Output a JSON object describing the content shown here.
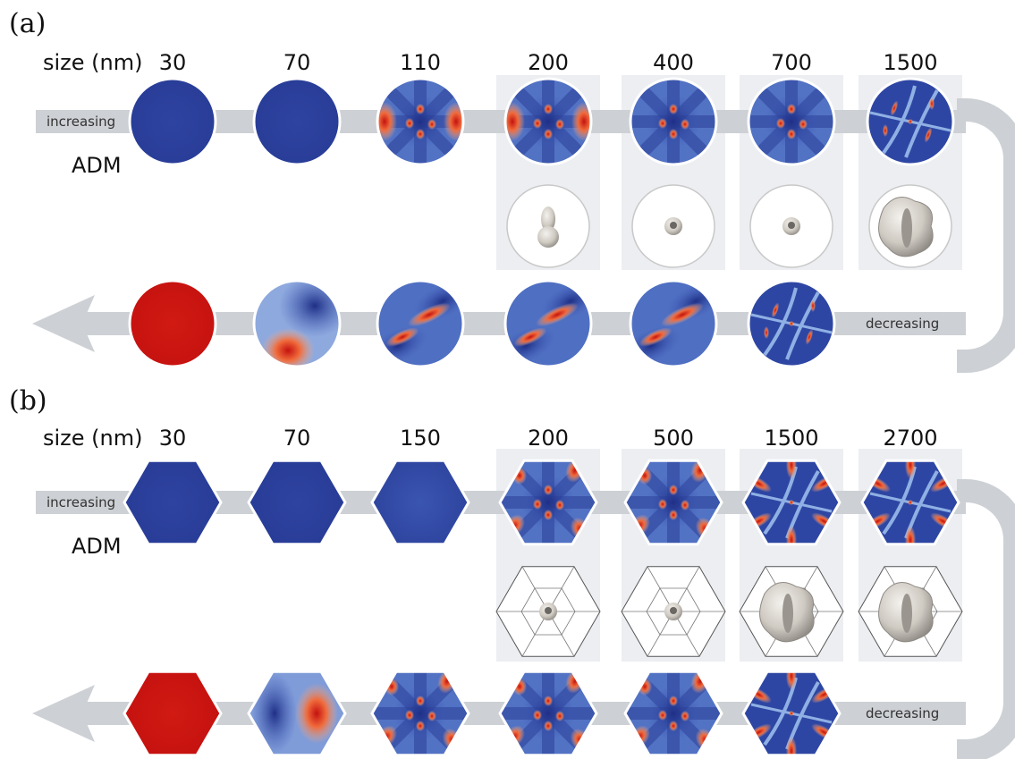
{
  "panels": [
    {
      "label": "(a)",
      "size_title": "size (nm)",
      "direction_increasing": "increasing",
      "direction_decreasing": "decreasing",
      "method": "ADM",
      "shape": "circle",
      "top_sizes": [
        "30",
        "70",
        "110",
        "200",
        "400",
        "700",
        "1500"
      ],
      "top_patterns": [
        "uniform-blue",
        "uniform-blue",
        "vortex-side",
        "vortex-side",
        "vortex-center",
        "vortex-center",
        "multi-domain"
      ],
      "iso_patterns": [
        "elongated",
        "ring",
        "ring",
        "complex"
      ],
      "bottom_patterns": [
        "uniform-red",
        "corner-red",
        "stripe",
        "stripe",
        "stripe",
        "multi-domain"
      ]
    },
    {
      "label": "(b)",
      "size_title": "size (nm)",
      "direction_increasing": "increasing",
      "direction_decreasing": "decreasing",
      "method": "ADM",
      "shape": "hexagon",
      "top_sizes": [
        "30",
        "70",
        "150",
        "200",
        "500",
        "1500",
        "2700"
      ],
      "top_patterns": [
        "uniform-blue",
        "uniform-blue",
        "uniform-blue-soft",
        "vortex-star",
        "vortex-star",
        "hex-multi",
        "hex-multi"
      ],
      "iso_patterns": [
        "ring",
        "ring",
        "complex",
        "complex"
      ],
      "bottom_patterns": [
        "uniform-red",
        "side-red",
        "vortex-star",
        "vortex-star",
        "vortex-star",
        "hex-multi"
      ]
    }
  ],
  "colors": {
    "blue": "#2b3f9a",
    "red": "#c81414",
    "light": "#e8ecf5",
    "arrow": "#cdd0d4",
    "box": "#eceef1"
  }
}
